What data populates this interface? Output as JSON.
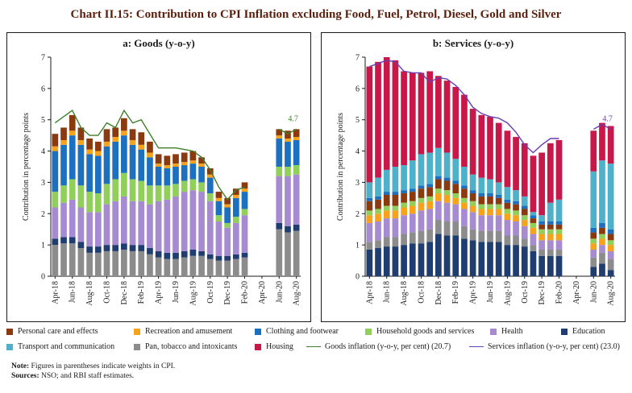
{
  "title": "Chart II.15: Contribution to CPI Inflation excluding Food, Fuel, Petrol, Diesel, Gold and Silver",
  "notes": {
    "note_label": "Note:",
    "note_text": "Figures in parentheses indicate weights in CPI.",
    "sources_label": "Sources:",
    "sources_text": "NSO; and RBI staff estimates."
  },
  "legend": [
    {
      "key": "personal",
      "label": "Personal care and effects",
      "type": "swatch",
      "color": "#8b3a0f"
    },
    {
      "key": "recreation",
      "label": "Recreation and amusement",
      "type": "swatch",
      "color": "#f7a21b"
    },
    {
      "key": "clothing",
      "label": "Clothing and footwear",
      "type": "swatch",
      "color": "#1d6fbf"
    },
    {
      "key": "household",
      "label": "Household goods and services",
      "type": "swatch",
      "color": "#8fcf5a"
    },
    {
      "key": "health",
      "label": "Health",
      "type": "swatch",
      "color": "#a78bd1"
    },
    {
      "key": "education",
      "label": "Education",
      "type": "swatch",
      "color": "#1f3d6e"
    },
    {
      "key": "transport",
      "label": "Transport and communication",
      "type": "swatch",
      "color": "#4fb0c9"
    },
    {
      "key": "pan",
      "label": "Pan, tobacco and intoxicants",
      "type": "swatch",
      "color": "#8c8c8c"
    },
    {
      "key": "housing",
      "label": "Housing",
      "type": "swatch",
      "color": "#c8184a"
    },
    {
      "key": "goods_line",
      "label": "Goods inflation (y-o-y, per cent) (20.7)",
      "type": "line",
      "color": "#3f7f2a"
    },
    {
      "key": "services_line",
      "label": "Services inflation (y-o-y, per cent) (23.0)",
      "type": "line",
      "color": "#6a3fb0"
    }
  ],
  "chart_data": [
    {
      "type": "bar",
      "stacked": true,
      "title": "a: Goods (y-o-y)",
      "ylabel": "Contribution in percentage points",
      "ylim": [
        0,
        7
      ],
      "yticks": [
        0,
        1,
        2,
        3,
        4,
        5,
        6,
        7
      ],
      "categories": [
        "Apr-18",
        "May-18",
        "Jun-18",
        "Jul-18",
        "Aug-18",
        "Sep-18",
        "Oct-18",
        "Nov-18",
        "Dec-18",
        "Jan-19",
        "Feb-19",
        "Mar-19",
        "Apr-19",
        "May-19",
        "Jun-19",
        "Jul-19",
        "Aug-19",
        "Sep-19",
        "Oct-19",
        "Nov-19",
        "Dec-19",
        "Jan-20",
        "Feb-20",
        "Mar-20",
        "Apr-20",
        "May-20",
        "Jun-20",
        "Jul-20",
        "Aug-20"
      ],
      "tick_labels": [
        "Apr-18",
        "Jun-18",
        "Aug-18",
        "Oct-18",
        "Dec-18",
        "Feb-19",
        "Apr-19",
        "Jun-19",
        "Aug-19",
        "Oct-19",
        "Dec-19",
        "Feb-20",
        "Apr-20",
        "Jun-20",
        "Aug-20"
      ],
      "series": [
        {
          "name": "Pan, tobacco and intoxicants",
          "key": "pan",
          "values": [
            1.0,
            1.05,
            1.05,
            0.9,
            0.75,
            0.75,
            0.8,
            0.8,
            0.85,
            0.8,
            0.8,
            0.7,
            0.6,
            0.55,
            0.55,
            0.6,
            0.65,
            0.65,
            0.55,
            0.5,
            0.5,
            0.55,
            0.6,
            null,
            null,
            null,
            1.5,
            1.4,
            1.45
          ]
        },
        {
          "name": "Education",
          "key": "education",
          "values": [
            0.2,
            0.2,
            0.2,
            0.2,
            0.2,
            0.2,
            0.2,
            0.2,
            0.2,
            0.2,
            0.2,
            0.2,
            0.2,
            0.2,
            0.2,
            0.2,
            0.2,
            0.15,
            0.15,
            0.15,
            0.15,
            0.15,
            0.15,
            null,
            null,
            null,
            0.2,
            0.2,
            0.2
          ]
        },
        {
          "name": "Health",
          "key": "health",
          "values": [
            1.0,
            1.1,
            1.2,
            1.1,
            1.1,
            1.1,
            1.3,
            1.4,
            1.5,
            1.4,
            1.4,
            1.4,
            1.6,
            1.7,
            1.8,
            1.9,
            1.9,
            1.9,
            1.7,
            1.1,
            0.9,
            1.0,
            1.2,
            null,
            null,
            null,
            1.5,
            1.6,
            1.6
          ]
        },
        {
          "name": "Household goods and services",
          "key": "household",
          "values": [
            0.5,
            0.55,
            0.65,
            0.7,
            0.65,
            0.6,
            0.65,
            0.7,
            0.75,
            0.7,
            0.65,
            0.6,
            0.5,
            0.45,
            0.4,
            0.35,
            0.35,
            0.3,
            0.25,
            0.2,
            0.15,
            0.2,
            0.2,
            null,
            null,
            null,
            0.3,
            0.3,
            0.3
          ]
        },
        {
          "name": "Clothing and footwear",
          "key": "clothing",
          "values": [
            1.3,
            1.3,
            1.4,
            1.3,
            1.2,
            1.2,
            1.2,
            1.2,
            1.2,
            1.1,
            1.0,
            0.9,
            0.6,
            0.55,
            0.55,
            0.5,
            0.5,
            0.5,
            0.5,
            0.45,
            0.5,
            0.6,
            0.55,
            null,
            null,
            null,
            0.9,
            0.8,
            0.8
          ]
        },
        {
          "name": "Recreation and amusement",
          "key": "recreation",
          "values": [
            0.15,
            0.15,
            0.15,
            0.15,
            0.15,
            0.15,
            0.15,
            0.15,
            0.15,
            0.15,
            0.15,
            0.15,
            0.1,
            0.1,
            0.1,
            0.1,
            0.1,
            0.1,
            0.1,
            0.1,
            0.1,
            0.1,
            0.1,
            null,
            null,
            null,
            0.1,
            0.1,
            0.1
          ]
        },
        {
          "name": "Personal care and effects",
          "key": "personal",
          "values": [
            0.4,
            0.4,
            0.5,
            0.4,
            0.35,
            0.3,
            0.4,
            0.3,
            0.4,
            0.35,
            0.4,
            0.35,
            0.3,
            0.3,
            0.3,
            0.3,
            0.3,
            0.2,
            0.2,
            0.2,
            0.2,
            0.2,
            0.2,
            null,
            null,
            null,
            0.2,
            0.25,
            0.25
          ]
        }
      ],
      "line": {
        "name": "Goods inflation (y-o-y, per cent) (20.7)",
        "key": "goods_line",
        "values": [
          4.9,
          5.1,
          5.3,
          4.75,
          4.5,
          4.5,
          4.9,
          4.75,
          5.3,
          4.9,
          5.0,
          4.55,
          4.1,
          4.1,
          4.1,
          4.05,
          4.0,
          3.8,
          3.4,
          2.85,
          2.45,
          2.75,
          2.85,
          null,
          null,
          null,
          4.7,
          4.55,
          4.7
        ]
      },
      "annotation": {
        "label": "4.7"
      }
    },
    {
      "type": "bar",
      "stacked": true,
      "title": "b: Services (y-o-y)",
      "ylabel": "Contribution in percentage points",
      "ylim": [
        0,
        7
      ],
      "yticks": [
        0,
        1,
        2,
        3,
        4,
        5,
        6,
        7
      ],
      "categories": [
        "Apr-18",
        "May-18",
        "Jun-18",
        "Jul-18",
        "Aug-18",
        "Sep-18",
        "Oct-18",
        "Nov-18",
        "Dec-18",
        "Jan-19",
        "Feb-19",
        "Mar-19",
        "Apr-19",
        "May-19",
        "Jun-19",
        "Jul-19",
        "Aug-19",
        "Sep-19",
        "Oct-19",
        "Nov-19",
        "Dec-19",
        "Jan-20",
        "Feb-20",
        "Mar-20",
        "Apr-20",
        "May-20",
        "Jun-20",
        "Jul-20",
        "Aug-20"
      ],
      "tick_labels": [
        "Apr-18",
        "Jun-18",
        "Aug-18",
        "Oct-18",
        "Dec-18",
        "Feb-19",
        "Apr-19",
        "Jun-19",
        "Aug-19",
        "Oct-19",
        "Dec-19",
        "Feb-20",
        "Apr-20",
        "Jun-20",
        "Aug-20"
      ],
      "series": [
        {
          "name": "Education",
          "key": "education",
          "values": [
            0.85,
            0.9,
            0.95,
            0.95,
            1.0,
            1.05,
            1.05,
            1.1,
            1.35,
            1.3,
            1.3,
            1.2,
            1.15,
            1.1,
            1.1,
            1.1,
            1.0,
            1.0,
            0.95,
            0.8,
            0.65,
            0.65,
            0.65,
            null,
            null,
            null,
            0.3,
            0.4,
            0.2
          ]
        },
        {
          "name": "Pan, tobacco and intoxicants",
          "key": "pan",
          "values": [
            0.25,
            0.25,
            0.3,
            0.3,
            0.35,
            0.35,
            0.4,
            0.4,
            0.45,
            0.45,
            0.45,
            0.4,
            0.35,
            0.35,
            0.35,
            0.35,
            0.3,
            0.3,
            0.25,
            0.2,
            0.2,
            0.2,
            0.2,
            null,
            null,
            null,
            0.3,
            0.35,
            0.35
          ]
        },
        {
          "name": "Health",
          "key": "health",
          "values": [
            0.6,
            0.6,
            0.6,
            0.6,
            0.6,
            0.6,
            0.65,
            0.65,
            0.6,
            0.6,
            0.55,
            0.55,
            0.55,
            0.5,
            0.5,
            0.5,
            0.5,
            0.45,
            0.4,
            0.35,
            0.3,
            0.3,
            0.3,
            null,
            null,
            null,
            0.25,
            0.25,
            0.25
          ]
        },
        {
          "name": "Recreation and amusement",
          "key": "recreation",
          "values": [
            0.25,
            0.25,
            0.25,
            0.25,
            0.25,
            0.25,
            0.25,
            0.25,
            0.25,
            0.25,
            0.2,
            0.2,
            0.2,
            0.2,
            0.2,
            0.2,
            0.2,
            0.2,
            0.2,
            0.2,
            0.2,
            0.2,
            0.2,
            null,
            null,
            null,
            0.2,
            0.2,
            0.2
          ]
        },
        {
          "name": "Household goods and services",
          "key": "household",
          "values": [
            0.15,
            0.15,
            0.15,
            0.15,
            0.15,
            0.15,
            0.15,
            0.15,
            0.15,
            0.15,
            0.15,
            0.15,
            0.15,
            0.15,
            0.15,
            0.15,
            0.15,
            0.15,
            0.15,
            0.15,
            0.15,
            0.15,
            0.15,
            null,
            null,
            null,
            0.15,
            0.15,
            0.15
          ]
        },
        {
          "name": "Personal care and effects",
          "key": "personal",
          "values": [
            0.3,
            0.3,
            0.35,
            0.35,
            0.3,
            0.3,
            0.3,
            0.3,
            0.3,
            0.3,
            0.3,
            0.3,
            0.25,
            0.25,
            0.25,
            0.2,
            0.2,
            0.2,
            0.2,
            0.15,
            0.15,
            0.15,
            0.15,
            null,
            null,
            null,
            0.2,
            0.2,
            0.2
          ]
        },
        {
          "name": "Clothing and footwear",
          "key": "clothing",
          "values": [
            0.1,
            0.1,
            0.1,
            0.1,
            0.1,
            0.1,
            0.1,
            0.1,
            0.1,
            0.1,
            0.1,
            0.1,
            0.1,
            0.1,
            0.1,
            0.1,
            0.1,
            0.1,
            0.1,
            0.1,
            0.1,
            0.1,
            0.1,
            null,
            null,
            null,
            0.15,
            0.15,
            0.15
          ]
        },
        {
          "name": "Transport and communication",
          "key": "transport",
          "values": [
            0.5,
            0.6,
            0.7,
            0.8,
            0.8,
            0.9,
            1.0,
            1.0,
            0.9,
            0.8,
            0.7,
            0.6,
            0.5,
            0.5,
            0.45,
            0.4,
            0.4,
            0.35,
            0.3,
            0.1,
            0.2,
            0.6,
            0.7,
            null,
            null,
            null,
            1.8,
            2.0,
            2.1
          ]
        },
        {
          "name": "Housing",
          "key": "housing",
          "values": [
            3.7,
            3.7,
            3.6,
            3.4,
            3.0,
            2.8,
            2.6,
            2.6,
            2.3,
            2.3,
            2.3,
            2.3,
            2.1,
            2.0,
            2.0,
            1.9,
            1.8,
            1.7,
            1.7,
            1.8,
            2.0,
            1.9,
            1.9,
            null,
            null,
            null,
            1.3,
            1.2,
            1.2
          ]
        }
      ],
      "line": {
        "name": "Services inflation (y-o-y, per cent) (23.0)",
        "key": "services_line",
        "values": [
          6.7,
          6.8,
          6.9,
          6.85,
          6.55,
          6.5,
          6.5,
          6.2,
          6.35,
          6.3,
          6.1,
          5.8,
          5.4,
          5.2,
          5.1,
          5.05,
          4.9,
          4.6,
          4.2,
          3.95,
          4.2,
          4.4,
          4.4,
          null,
          null,
          null,
          4.7,
          4.85,
          4.7
        ]
      },
      "annotation": {
        "label": "4.7"
      }
    }
  ]
}
